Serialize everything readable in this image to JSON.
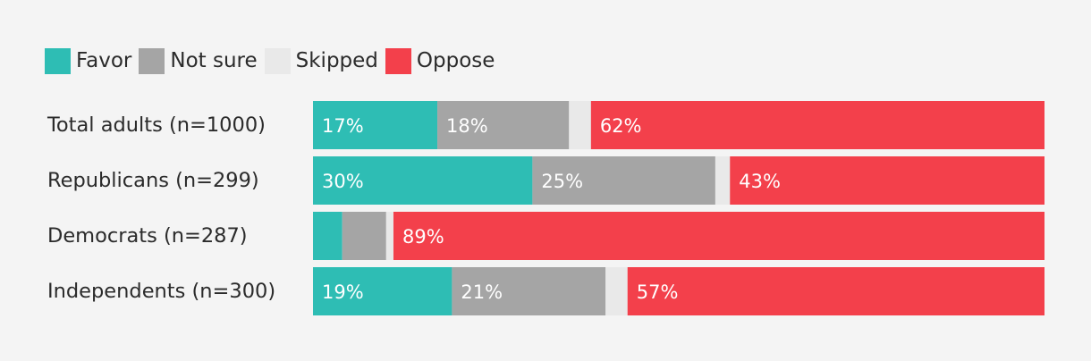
{
  "chart_data": {
    "type": "bar",
    "orientation": "horizontal",
    "stacked": true,
    "categories": [
      "Total adults (n=1000)",
      "Republicans (n=299)",
      "Democrats (n=287)",
      "Independents (n=300)"
    ],
    "series": [
      {
        "name": "Favor",
        "color": "#2ebdb4",
        "values": [
          17,
          30,
          4,
          19
        ],
        "labels": [
          "17%",
          "30%",
          "",
          "19%"
        ]
      },
      {
        "name": "Not sure",
        "color": "#a5a5a5",
        "values": [
          18,
          25,
          6,
          21
        ],
        "labels": [
          "18%",
          "25%",
          "",
          "21%"
        ]
      },
      {
        "name": "Skipped",
        "color": "#e9e9e9",
        "values": [
          3,
          2,
          1,
          3
        ],
        "labels": [
          "",
          "",
          "",
          ""
        ]
      },
      {
        "name": "Oppose",
        "color": "#f3404b",
        "values": [
          62,
          43,
          89,
          57
        ],
        "labels": [
          "62%",
          "43%",
          "89%",
          "57%"
        ]
      }
    ],
    "legend_position": "top-left",
    "grid": false
  }
}
